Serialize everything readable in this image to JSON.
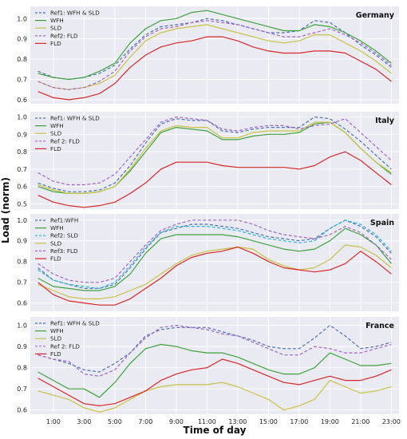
{
  "figure": {
    "ylabel": "Load (norm)",
    "xlabel": "Time of day",
    "xticks": [
      "1:00",
      "3:00",
      "5:00",
      "7:00",
      "9:00",
      "11:00",
      "13:00",
      "15:00",
      "17:00",
      "19:00",
      "21:00",
      "23:00"
    ],
    "xtick_hours": [
      1,
      3,
      5,
      7,
      9,
      11,
      13,
      15,
      17,
      19,
      21,
      23
    ]
  },
  "colors": {
    "background": "#eaeaf2",
    "grid": "#ffffff",
    "dashed_blue": "#4c72b0",
    "cyan": "#2ab7d9",
    "green": "#3ca33c",
    "yellow": "#c9c244",
    "purple": "#a064c8",
    "red": "#d62728"
  },
  "chart_data": [
    {
      "type": "line",
      "title": "Germany",
      "hours": [
        0,
        1,
        2,
        3,
        4,
        5,
        6,
        7,
        8,
        9,
        10,
        11,
        12,
        13,
        14,
        15,
        16,
        17,
        18,
        19,
        20,
        21,
        22,
        23
      ],
      "ylim": [
        0.58,
        1.06
      ],
      "yticks": [
        0.6,
        0.7,
        0.8,
        0.9,
        1.0
      ],
      "legend_position": "top-left",
      "series": [
        {
          "name": "Ref1: WFH & SLD",
          "style": "dashed",
          "color": "#4c72b0",
          "values": [
            0.74,
            0.71,
            0.7,
            0.71,
            0.73,
            0.77,
            0.85,
            0.92,
            0.96,
            0.97,
            0.98,
            1.0,
            0.99,
            0.97,
            0.95,
            0.93,
            0.93,
            0.94,
            0.99,
            0.98,
            0.93,
            0.87,
            0.82,
            0.76
          ]
        },
        {
          "name": "WFH",
          "style": "solid",
          "color": "#3ca33c",
          "values": [
            0.73,
            0.71,
            0.7,
            0.71,
            0.74,
            0.78,
            0.88,
            0.95,
            0.99,
            1.0,
            1.03,
            1.04,
            1.02,
            1.0,
            0.98,
            0.96,
            0.94,
            0.94,
            0.97,
            0.96,
            0.93,
            0.89,
            0.84,
            0.78
          ]
        },
        {
          "name": "SLD",
          "style": "solid",
          "color": "#c9c244",
          "values": [
            0.69,
            0.66,
            0.65,
            0.66,
            0.68,
            0.72,
            0.81,
            0.89,
            0.93,
            0.95,
            0.96,
            0.97,
            0.95,
            0.93,
            0.91,
            0.89,
            0.88,
            0.89,
            0.92,
            0.92,
            0.88,
            0.84,
            0.79,
            0.73
          ]
        },
        {
          "name": "Ref2: FLD",
          "style": "dashed",
          "color": "#a064c8",
          "values": [
            0.69,
            0.66,
            0.65,
            0.66,
            0.69,
            0.74,
            0.84,
            0.91,
            0.95,
            0.96,
            0.98,
            0.99,
            0.98,
            0.97,
            0.95,
            0.93,
            0.91,
            0.91,
            0.93,
            0.95,
            0.92,
            0.88,
            0.83,
            0.77
          ]
        },
        {
          "name": "FLD",
          "style": "solid",
          "color": "#d62728",
          "values": [
            0.64,
            0.61,
            0.6,
            0.61,
            0.63,
            0.68,
            0.76,
            0.82,
            0.86,
            0.88,
            0.89,
            0.91,
            0.91,
            0.89,
            0.86,
            0.84,
            0.83,
            0.83,
            0.84,
            0.84,
            0.83,
            0.79,
            0.75,
            0.69
          ]
        }
      ]
    },
    {
      "type": "line",
      "title": "Italy",
      "hours": [
        0,
        1,
        2,
        3,
        4,
        5,
        6,
        7,
        8,
        9,
        10,
        11,
        12,
        13,
        14,
        15,
        16,
        17,
        18,
        19,
        20,
        21,
        22,
        23
      ],
      "ylim": [
        0.47,
        1.03
      ],
      "yticks": [
        0.5,
        0.6,
        0.7,
        0.8,
        0.9,
        1.0
      ],
      "legend_position": "top-left",
      "series": [
        {
          "name": "Ref1: WFH & SLD",
          "style": "dashed",
          "color": "#4c72b0",
          "values": [
            0.62,
            0.59,
            0.57,
            0.57,
            0.58,
            0.62,
            0.72,
            0.85,
            0.96,
            0.99,
            0.98,
            0.98,
            0.92,
            0.91,
            0.93,
            0.94,
            0.94,
            0.94,
            1.0,
            0.99,
            0.93,
            0.86,
            0.78,
            0.7
          ]
        },
        {
          "name": "WFH",
          "style": "solid",
          "color": "#3ca33c",
          "values": [
            0.6,
            0.57,
            0.56,
            0.56,
            0.57,
            0.6,
            0.69,
            0.8,
            0.91,
            0.94,
            0.93,
            0.92,
            0.87,
            0.87,
            0.89,
            0.9,
            0.9,
            0.91,
            0.96,
            0.97,
            0.91,
            0.82,
            0.74,
            0.67
          ]
        },
        {
          "name": "SLD",
          "style": "solid",
          "color": "#c9c244",
          "values": [
            0.61,
            0.58,
            0.56,
            0.56,
            0.57,
            0.6,
            0.7,
            0.82,
            0.92,
            0.95,
            0.94,
            0.94,
            0.88,
            0.88,
            0.91,
            0.92,
            0.92,
            0.92,
            0.97,
            0.97,
            0.91,
            0.82,
            0.74,
            0.68
          ]
        },
        {
          "name": "Ref 2: FLD",
          "style": "dashed",
          "color": "#a064c8",
          "values": [
            0.68,
            0.63,
            0.61,
            0.61,
            0.62,
            0.67,
            0.77,
            0.87,
            0.97,
            1.0,
            0.99,
            0.98,
            0.93,
            0.92,
            0.94,
            0.95,
            0.95,
            0.93,
            0.95,
            0.96,
            0.99,
            0.91,
            0.83,
            0.75
          ]
        },
        {
          "name": "FLD",
          "style": "solid",
          "color": "#d62728",
          "values": [
            0.55,
            0.51,
            0.49,
            0.48,
            0.49,
            0.51,
            0.56,
            0.62,
            0.7,
            0.74,
            0.74,
            0.74,
            0.72,
            0.71,
            0.71,
            0.71,
            0.71,
            0.7,
            0.72,
            0.77,
            0.8,
            0.75,
            0.68,
            0.61
          ]
        }
      ]
    },
    {
      "type": "line",
      "title": "Spain",
      "hours": [
        0,
        1,
        2,
        3,
        4,
        5,
        6,
        7,
        8,
        9,
        10,
        11,
        12,
        13,
        14,
        15,
        16,
        17,
        18,
        19,
        20,
        21,
        22,
        23
      ],
      "ylim": [
        0.56,
        1.03
      ],
      "yticks": [
        0.6,
        0.7,
        0.8,
        0.9,
        1.0
      ],
      "legend_position": "top-left",
      "series": [
        {
          "name": "Ref1:WFH",
          "style": "dashed",
          "color": "#4c72b0",
          "values": [
            0.77,
            0.71,
            0.69,
            0.67,
            0.67,
            0.69,
            0.77,
            0.86,
            0.94,
            0.96,
            0.98,
            0.98,
            0.97,
            0.96,
            0.94,
            0.92,
            0.91,
            0.9,
            0.91,
            0.96,
            1.0,
            0.97,
            0.92,
            0.84
          ]
        },
        {
          "name": "WFH",
          "style": "solid",
          "color": "#3ca33c",
          "values": [
            0.72,
            0.68,
            0.67,
            0.66,
            0.66,
            0.68,
            0.74,
            0.84,
            0.91,
            0.93,
            0.93,
            0.93,
            0.93,
            0.92,
            0.9,
            0.88,
            0.86,
            0.85,
            0.86,
            0.9,
            0.96,
            0.93,
            0.88,
            0.79
          ]
        },
        {
          "name": "Ref2: SLD",
          "style": "dashed",
          "color": "#2ab7d9",
          "values": [
            0.76,
            0.71,
            0.69,
            0.68,
            0.67,
            0.7,
            0.78,
            0.87,
            0.94,
            0.97,
            0.97,
            0.97,
            0.96,
            0.95,
            0.93,
            0.91,
            0.9,
            0.89,
            0.9,
            0.96,
            1.0,
            0.98,
            0.93,
            0.85
          ]
        },
        {
          "name": "SLD",
          "style": "solid",
          "color": "#c9c244",
          "values": [
            0.69,
            0.66,
            0.63,
            0.62,
            0.62,
            0.63,
            0.66,
            0.69,
            0.74,
            0.79,
            0.83,
            0.85,
            0.86,
            0.87,
            0.86,
            0.81,
            0.78,
            0.76,
            0.77,
            0.81,
            0.88,
            0.87,
            0.83,
            0.77
          ]
        },
        {
          "name": "Ref3: FLD",
          "style": "dashed",
          "color": "#a064c8",
          "values": [
            0.79,
            0.74,
            0.71,
            0.7,
            0.7,
            0.72,
            0.8,
            0.88,
            0.95,
            0.98,
            1.0,
            1.0,
            1.0,
            1.0,
            0.98,
            0.95,
            0.93,
            0.92,
            0.91,
            0.93,
            0.97,
            0.94,
            0.88,
            0.81
          ]
        },
        {
          "name": "FLD",
          "style": "solid",
          "color": "#d62728",
          "values": [
            0.7,
            0.64,
            0.61,
            0.6,
            0.59,
            0.59,
            0.62,
            0.67,
            0.72,
            0.78,
            0.82,
            0.84,
            0.85,
            0.87,
            0.84,
            0.8,
            0.77,
            0.76,
            0.75,
            0.76,
            0.79,
            0.85,
            0.8,
            0.74
          ]
        }
      ]
    },
    {
      "type": "line",
      "title": "France",
      "hours": [
        0,
        1,
        2,
        3,
        4,
        5,
        6,
        7,
        8,
        9,
        10,
        11,
        12,
        13,
        14,
        15,
        16,
        17,
        18,
        19,
        20,
        21,
        22,
        23
      ],
      "ylim": [
        0.58,
        1.04
      ],
      "yticks": [
        0.6,
        0.7,
        0.8,
        0.9,
        1.0
      ],
      "legend_position": "top-left",
      "series": [
        {
          "name": "Ref1: WFH & SLD",
          "style": "dashed",
          "color": "#4c72b0",
          "values": [
            0.86,
            0.84,
            0.82,
            0.79,
            0.78,
            0.82,
            0.87,
            0.95,
            0.98,
            0.99,
            0.99,
            0.99,
            0.97,
            0.95,
            0.93,
            0.9,
            0.89,
            0.89,
            0.94,
            1.0,
            0.95,
            0.89,
            0.9,
            0.92
          ]
        },
        {
          "name": "WFH",
          "style": "solid",
          "color": "#3ca33c",
          "values": [
            0.78,
            0.74,
            0.7,
            0.7,
            0.66,
            0.73,
            0.82,
            0.89,
            0.91,
            0.9,
            0.88,
            0.87,
            0.87,
            0.85,
            0.82,
            0.79,
            0.77,
            0.77,
            0.8,
            0.87,
            0.84,
            0.81,
            0.81,
            0.82
          ]
        },
        {
          "name": "SLD",
          "style": "solid",
          "color": "#c9c244",
          "values": [
            0.69,
            0.67,
            0.65,
            0.61,
            0.59,
            0.61,
            0.65,
            0.69,
            0.71,
            0.72,
            0.72,
            0.72,
            0.73,
            0.71,
            0.68,
            0.65,
            0.6,
            0.62,
            0.65,
            0.74,
            0.71,
            0.68,
            0.69,
            0.71
          ]
        },
        {
          "name": "Ref 2: FLD",
          "style": "dashed",
          "color": "#a064c8",
          "values": [
            0.86,
            0.84,
            0.83,
            0.77,
            0.76,
            0.79,
            0.87,
            0.94,
            0.99,
            1.0,
            0.99,
            0.98,
            0.96,
            0.95,
            0.92,
            0.89,
            0.86,
            0.86,
            0.9,
            0.89,
            0.87,
            0.87,
            0.89,
            0.91
          ]
        },
        {
          "name": "FLD",
          "style": "solid",
          "color": "#d62728",
          "values": [
            0.75,
            0.71,
            0.67,
            0.63,
            0.62,
            0.63,
            0.66,
            0.69,
            0.74,
            0.77,
            0.79,
            0.8,
            0.84,
            0.82,
            0.79,
            0.76,
            0.73,
            0.72,
            0.74,
            0.76,
            0.74,
            0.74,
            0.76,
            0.79
          ]
        }
      ]
    }
  ]
}
